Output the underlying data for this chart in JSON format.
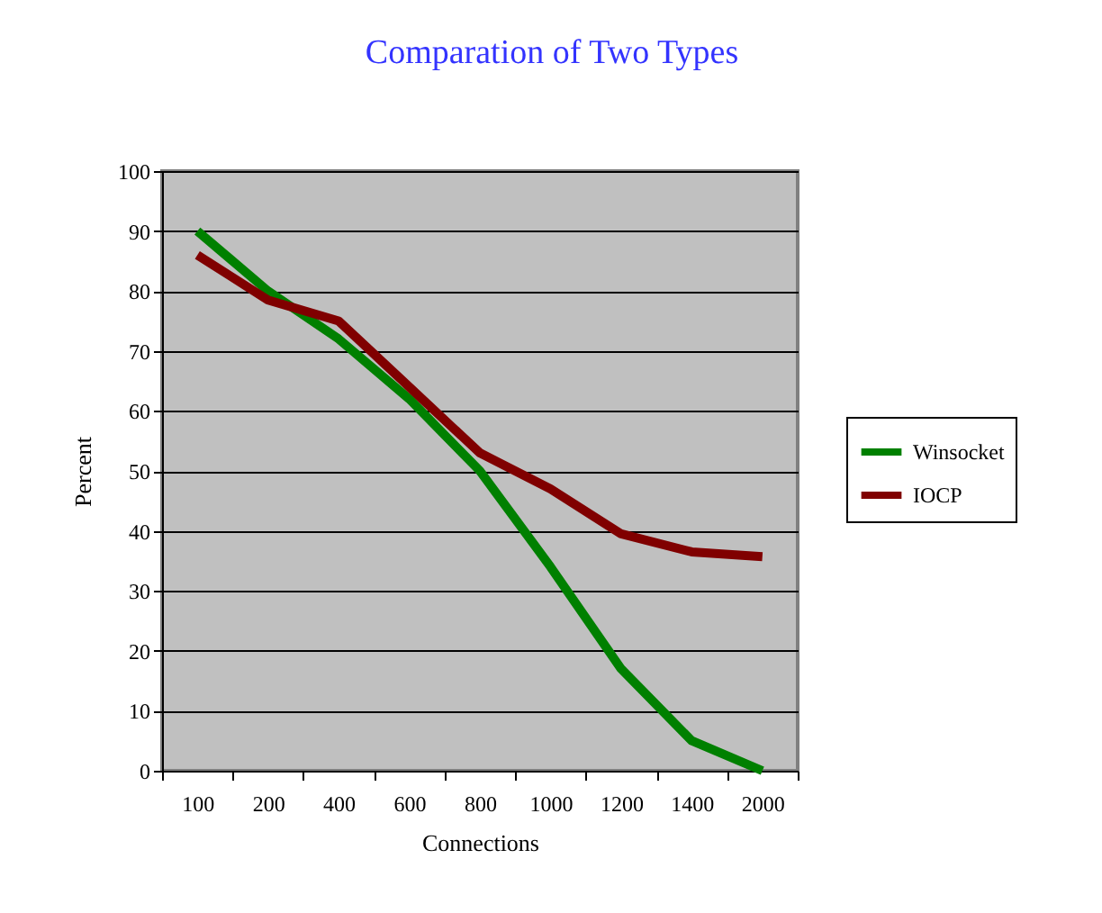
{
  "chart_data": {
    "type": "line",
    "title": "Comparation of Two Types",
    "xlabel": "Connections",
    "ylabel": "Percent",
    "categories": [
      "100",
      "200",
      "400",
      "600",
      "800",
      "1000",
      "1200",
      "1400",
      "2000"
    ],
    "series": [
      {
        "name": "Winsocket",
        "color": "#008000",
        "values": [
          90,
          80,
          72,
          62,
          50,
          34,
          17,
          5,
          0
        ]
      },
      {
        "name": "IOCP",
        "color": "#800000",
        "values": [
          86,
          78.5,
          75,
          64,
          53,
          47,
          39.5,
          36.5,
          35.7
        ]
      }
    ],
    "ylim": [
      0,
      100
    ],
    "yticks": [
      0,
      10,
      20,
      30,
      40,
      50,
      60,
      70,
      80,
      90,
      100
    ],
    "grid": "y",
    "legend": "right"
  }
}
